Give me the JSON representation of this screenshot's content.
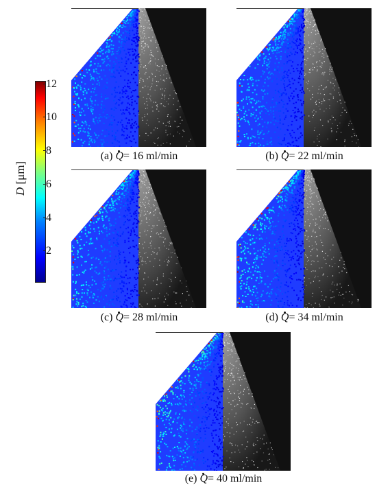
{
  "colorbar": {
    "label_symbol": "D",
    "label_unit": "[μm]",
    "ticks": [
      "12",
      "10",
      "8",
      "6",
      "4",
      "2"
    ],
    "range": [
      0,
      12
    ]
  },
  "panels": [
    {
      "id": "a",
      "prefix": "(a)",
      "symbol": "Q",
      "value_text": "= 16 ml/min",
      "flow": 16
    },
    {
      "id": "b",
      "prefix": "(b)",
      "symbol": "Q",
      "value_text": "= 22 ml/min",
      "flow": 22
    },
    {
      "id": "c",
      "prefix": "(c)",
      "symbol": "Q",
      "value_text": "= 28 ml/min",
      "flow": 28
    },
    {
      "id": "d",
      "prefix": "(d)",
      "symbol": "Q",
      "value_text": "= 34 ml/min",
      "flow": 34
    },
    {
      "id": "e",
      "prefix": "(e)",
      "symbol": "Q",
      "value_text": "= 40 ml/min",
      "flow": 40
    }
  ]
}
